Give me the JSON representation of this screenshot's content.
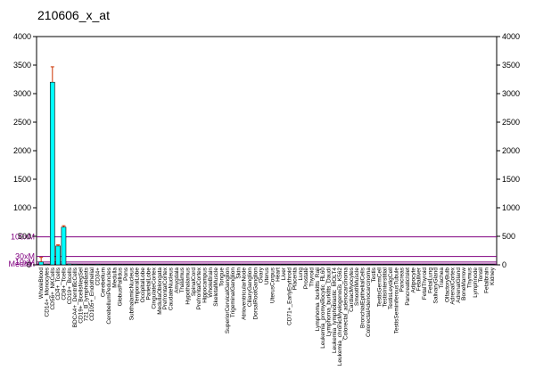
{
  "chart_data": {
    "type": "bar",
    "title": "210606_x_at",
    "ylim": [
      0,
      4000
    ],
    "y_ticks": [
      "0",
      "500",
      "1000",
      "1500",
      "2000",
      "2500",
      "3000",
      "3500",
      "4000"
    ],
    "y_right_ticks": [
      "0",
      "500",
      "1000",
      "1500",
      "2000",
      "2500",
      "3000",
      "3500",
      "4000"
    ],
    "reference_lines": [
      {
        "label": "100xM",
        "value": 490
      },
      {
        "label": "30xM",
        "value": 147
      },
      {
        "label": "10xM",
        "value": 49
      },
      {
        "label": "Median",
        "value": 16
      }
    ],
    "categories": [
      "WholeBlood",
      "CD14+_Monocytes",
      "CD56+_NKCells",
      "CD4+_Tcells",
      "CD8+_Tcells",
      "CD19+_Bcells",
      "BDCA4+_DentriticCells",
      "CD19+_BcellsNegSel",
      "721_B_lymphoblasts",
      "CD105+_Endothelial",
      "CD34+",
      "Cerebellum",
      "CerebellumPeduncles",
      "Medulla",
      "GlobusPallidus",
      "Pons",
      "SubthalamicNucleus",
      "TemporalLobe",
      "OccipitalLobe",
      "ParietalLobe",
      "CingulateCortex",
      "MedullaOblongata",
      "PrefrontalCortex",
      "CaudateNucleus",
      "Amygdala",
      "Thalamus",
      "Hypothalamus",
      "SpinalCord",
      "PrefrontalCortex",
      "Hippocampus",
      "WholeBrain",
      "SkeletalMuscle",
      "Tongue",
      "SuperiorCervicalGanglion",
      "TrigeminalGanglion",
      "Skin",
      "AtrioventricularNode",
      "CiliaryGanglion",
      "DorsalRootGanglion",
      "Ovary",
      "Uterus",
      "UterusCorpus",
      "Heart",
      "Liver",
      "CD71+_EarlyErythroid",
      "Placenta",
      "Lung",
      "Prostate",
      "Thyroid",
      "Lymphoma_burkitts_Raji",
      "Leukemia_promyelocytic_HL60",
      "Lymphoma_burkitts_Daudi",
      "Leukemia_lymphoblastic_MOLT4",
      "Leukemia_chronicMyelogenous_K562",
      "Colorectal_adenocarcinoma",
      "CardiacMyocytes",
      "SmoothMuscle",
      "BronchialEpithelialCells",
      "ColorectalAdenocarcinoma",
      "Testis",
      "TestisGermCell",
      "TestisInterstitial",
      "TestisLeydigCell",
      "TestisSeminiferousTubule",
      "Pancreas",
      "PancreaticIslet",
      "Adipocyte",
      "Fetalliver",
      "FetalThyroid",
      "FetalLung",
      "SalivaryGland",
      "Trachea",
      "OlfactoryBulb",
      "AdrenalCortex",
      "AdrenalGland",
      "BoneMarrow",
      "Thymus",
      "Lymphnode",
      "Tonsil",
      "Fetalbrain",
      "Kidney"
    ],
    "values": [
      50,
      12,
      3200,
      330,
      660,
      15,
      12,
      10,
      8,
      10,
      12,
      10,
      10,
      10,
      10,
      10,
      10,
      10,
      10,
      10,
      10,
      10,
      10,
      10,
      10,
      10,
      10,
      10,
      10,
      10,
      10,
      10,
      10,
      10,
      10,
      10,
      10,
      10,
      10,
      10,
      10,
      10,
      10,
      10,
      10,
      10,
      10,
      10,
      10,
      10,
      10,
      10,
      10,
      10,
      10,
      10,
      10,
      10,
      10,
      10,
      10,
      10,
      10,
      10,
      10,
      10,
      10,
      10,
      10,
      10,
      10,
      10,
      10,
      10,
      10,
      10,
      10,
      10,
      10,
      10,
      10
    ],
    "errors": [
      80,
      0,
      270,
      20,
      25,
      0,
      0,
      0,
      0,
      0,
      0,
      0,
      0,
      0,
      0,
      0,
      0,
      0,
      0,
      0,
      0,
      0,
      0,
      0,
      0,
      0,
      0,
      0,
      0,
      0,
      0,
      0,
      0,
      0,
      0,
      0,
      0,
      0,
      0,
      0,
      0,
      0,
      0,
      0,
      0,
      0,
      0,
      0,
      0,
      0,
      0,
      0,
      0,
      0,
      0,
      0,
      0,
      0,
      0,
      0,
      0,
      0,
      0,
      0,
      0,
      0,
      0,
      0,
      0,
      0,
      0,
      0,
      0,
      0,
      0,
      0,
      0,
      0,
      0,
      0,
      0
    ],
    "bar_color": "#00ffff",
    "error_color": "#cc3300",
    "ref_color": "#800080",
    "grid": false,
    "legend": "none"
  }
}
